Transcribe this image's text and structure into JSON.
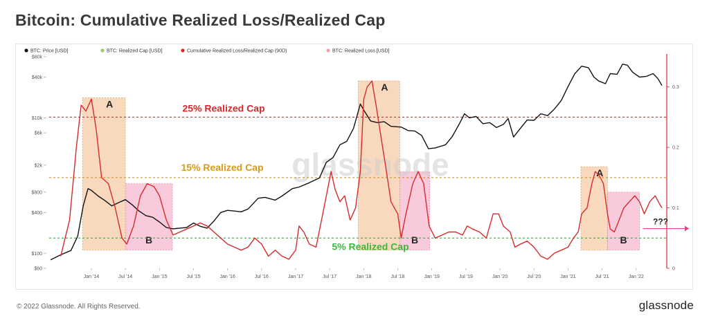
{
  "title": "Bitcoin: Cumulative Realized Loss/Realized Cap",
  "footer": {
    "copyright": "© 2022 Glassnode. All Rights Reserved.",
    "brand": "glassnode"
  },
  "watermark": "glassnode",
  "chart_data": {
    "type": "line",
    "legend": [
      {
        "label": "BTC: Price [USD]",
        "color": "#111111",
        "active": true
      },
      {
        "label": "BTC: Realized Cap [USD]",
        "color": "#8fd16a",
        "active": false
      },
      {
        "label": "Cumulative Realized Loss/Realized Cap (90D)",
        "color": "#d62a2a",
        "active": true
      },
      {
        "label": "BTC: Realized Loss [USD]",
        "color": "#f2a3a8",
        "active": false
      }
    ],
    "x_ticks": [
      "Jan '14",
      "Jul '14",
      "Jan '15",
      "Jul '15",
      "Jan '16",
      "Jul '16",
      "Jan '17",
      "Jul '17",
      "Jan '18",
      "Jul '18",
      "Jan '19",
      "Jul '19",
      "Jan '20",
      "Jul '20",
      "Jan '21",
      "Jul '21",
      "Jan '22"
    ],
    "y_left": {
      "scale": "log",
      "ticks": [
        "$60",
        "$100",
        "$400",
        "$800",
        "$2k",
        "$6k",
        "$10k",
        "$40k",
        "$80k"
      ]
    },
    "y_right": {
      "scale": "linear",
      "range": [
        0,
        0.35
      ],
      "ticks": [
        "0",
        "0.1",
        "0.2",
        "0.3"
      ]
    },
    "levels": [
      {
        "label": "25% Realized Cap",
        "value": 0.25,
        "color": "#d62a2a"
      },
      {
        "label": "15% Realized Cap",
        "value": 0.15,
        "color": "#d99a1a"
      },
      {
        "label": "5% Realized Cap",
        "value": 0.05,
        "color": "#3cb83c"
      }
    ],
    "zones": [
      {
        "label": "A",
        "kind": "A",
        "start": 2013.87,
        "end": 2014.5
      },
      {
        "label": "B",
        "kind": "B",
        "start": 2014.5,
        "end": 2015.19
      },
      {
        "label": "A",
        "kind": "A",
        "start": 2017.92,
        "end": 2018.53
      },
      {
        "label": "B",
        "kind": "B",
        "start": 2018.53,
        "end": 2018.97
      },
      {
        "label": "A",
        "kind": "A",
        "start": 2021.19,
        "end": 2021.58
      },
      {
        "label": "B",
        "kind": "B",
        "start": 2021.58,
        "end": 2022.05
      }
    ],
    "annotation": "???",
    "series": [
      {
        "name": "BTC: Price [USD]",
        "axis": "left",
        "color": "#111111",
        "points": [
          [
            2013.4,
            80
          ],
          [
            2013.55,
            95
          ],
          [
            2013.7,
            110
          ],
          [
            2013.8,
            180
          ],
          [
            2013.88,
            500
          ],
          [
            2013.95,
            900
          ],
          [
            2014.0,
            850
          ],
          [
            2014.1,
            700
          ],
          [
            2014.2,
            600
          ],
          [
            2014.3,
            500
          ],
          [
            2014.4,
            560
          ],
          [
            2014.5,
            620
          ],
          [
            2014.6,
            520
          ],
          [
            2014.7,
            420
          ],
          [
            2014.8,
            360
          ],
          [
            2014.9,
            340
          ],
          [
            2015.0,
            290
          ],
          [
            2015.1,
            240
          ],
          [
            2015.2,
            230
          ],
          [
            2015.3,
            235
          ],
          [
            2015.4,
            240
          ],
          [
            2015.5,
            280
          ],
          [
            2015.6,
            250
          ],
          [
            2015.7,
            235
          ],
          [
            2015.8,
            300
          ],
          [
            2015.9,
            400
          ],
          [
            2016.0,
            430
          ],
          [
            2016.1,
            420
          ],
          [
            2016.2,
            410
          ],
          [
            2016.3,
            450
          ],
          [
            2016.45,
            650
          ],
          [
            2016.55,
            670
          ],
          [
            2016.7,
            610
          ],
          [
            2016.8,
            700
          ],
          [
            2016.95,
            900
          ],
          [
            2017.05,
            950
          ],
          [
            2017.2,
            1100
          ],
          [
            2017.35,
            1300
          ],
          [
            2017.45,
            2200
          ],
          [
            2017.55,
            2600
          ],
          [
            2017.65,
            4000
          ],
          [
            2017.75,
            4500
          ],
          [
            2017.85,
            7000
          ],
          [
            2017.95,
            16000
          ],
          [
            2018.0,
            13000
          ],
          [
            2018.1,
            9000
          ],
          [
            2018.2,
            8500
          ],
          [
            2018.3,
            8800
          ],
          [
            2018.4,
            7500
          ],
          [
            2018.55,
            7300
          ],
          [
            2018.65,
            6500
          ],
          [
            2018.75,
            6400
          ],
          [
            2018.85,
            5500
          ],
          [
            2018.95,
            3500
          ],
          [
            2019.05,
            3600
          ],
          [
            2019.2,
            4000
          ],
          [
            2019.3,
            5300
          ],
          [
            2019.4,
            8000
          ],
          [
            2019.48,
            11500
          ],
          [
            2019.55,
            10000
          ],
          [
            2019.65,
            10500
          ],
          [
            2019.75,
            8200
          ],
          [
            2019.85,
            8500
          ],
          [
            2019.95,
            7200
          ],
          [
            2020.05,
            8000
          ],
          [
            2020.12,
            9800
          ],
          [
            2020.2,
            5200
          ],
          [
            2020.3,
            7000
          ],
          [
            2020.4,
            9300
          ],
          [
            2020.5,
            9200
          ],
          [
            2020.6,
            11500
          ],
          [
            2020.7,
            10800
          ],
          [
            2020.8,
            13500
          ],
          [
            2020.9,
            18000
          ],
          [
            2021.0,
            29000
          ],
          [
            2021.1,
            45000
          ],
          [
            2021.2,
            58000
          ],
          [
            2021.3,
            55000
          ],
          [
            2021.38,
            40000
          ],
          [
            2021.45,
            35000
          ],
          [
            2021.55,
            32000
          ],
          [
            2021.62,
            45000
          ],
          [
            2021.72,
            44000
          ],
          [
            2021.8,
            62000
          ],
          [
            2021.87,
            60000
          ],
          [
            2021.95,
            47000
          ],
          [
            2022.05,
            40000
          ],
          [
            2022.15,
            41000
          ],
          [
            2022.25,
            45000
          ],
          [
            2022.32,
            38000
          ],
          [
            2022.38,
            30000
          ]
        ]
      },
      {
        "name": "Cumulative Realized Loss/Realized Cap (90D)",
        "axis": "right",
        "color": "#d62a2a",
        "points": [
          [
            2013.55,
            0.02
          ],
          [
            2013.68,
            0.08
          ],
          [
            2013.78,
            0.2
          ],
          [
            2013.85,
            0.27
          ],
          [
            2013.92,
            0.26
          ],
          [
            2014.0,
            0.28
          ],
          [
            2014.07,
            0.23
          ],
          [
            2014.15,
            0.15
          ],
          [
            2014.25,
            0.14
          ],
          [
            2014.35,
            0.1
          ],
          [
            2014.45,
            0.05
          ],
          [
            2014.52,
            0.04
          ],
          [
            2014.62,
            0.07
          ],
          [
            2014.72,
            0.12
          ],
          [
            2014.82,
            0.14
          ],
          [
            2014.92,
            0.135
          ],
          [
            2015.0,
            0.12
          ],
          [
            2015.1,
            0.08
          ],
          [
            2015.2,
            0.055
          ],
          [
            2015.3,
            0.06
          ],
          [
            2015.4,
            0.065
          ],
          [
            2015.5,
            0.07
          ],
          [
            2015.6,
            0.075
          ],
          [
            2015.7,
            0.07
          ],
          [
            2015.8,
            0.06
          ],
          [
            2015.9,
            0.05
          ],
          [
            2016.0,
            0.04
          ],
          [
            2016.1,
            0.035
          ],
          [
            2016.2,
            0.03
          ],
          [
            2016.3,
            0.035
          ],
          [
            2016.4,
            0.05
          ],
          [
            2016.5,
            0.04
          ],
          [
            2016.6,
            0.02
          ],
          [
            2016.7,
            0.03
          ],
          [
            2016.8,
            0.02
          ],
          [
            2016.9,
            0.015
          ],
          [
            2017.0,
            0.03
          ],
          [
            2017.05,
            0.07
          ],
          [
            2017.12,
            0.06
          ],
          [
            2017.2,
            0.04
          ],
          [
            2017.3,
            0.035
          ],
          [
            2017.38,
            0.08
          ],
          [
            2017.45,
            0.12
          ],
          [
            2017.52,
            0.16
          ],
          [
            2017.58,
            0.13
          ],
          [
            2017.65,
            0.11
          ],
          [
            2017.72,
            0.12
          ],
          [
            2017.8,
            0.08
          ],
          [
            2017.88,
            0.1
          ],
          [
            2017.95,
            0.16
          ],
          [
            2018.0,
            0.28
          ],
          [
            2018.05,
            0.3
          ],
          [
            2018.12,
            0.31
          ],
          [
            2018.18,
            0.27
          ],
          [
            2018.25,
            0.22
          ],
          [
            2018.32,
            0.17
          ],
          [
            2018.4,
            0.11
          ],
          [
            2018.5,
            0.09
          ],
          [
            2018.55,
            0.05
          ],
          [
            2018.62,
            0.09
          ],
          [
            2018.72,
            0.14
          ],
          [
            2018.8,
            0.16
          ],
          [
            2018.88,
            0.14
          ],
          [
            2018.96,
            0.07
          ],
          [
            2019.05,
            0.05
          ],
          [
            2019.15,
            0.055
          ],
          [
            2019.25,
            0.06
          ],
          [
            2019.35,
            0.06
          ],
          [
            2019.45,
            0.055
          ],
          [
            2019.52,
            0.07
          ],
          [
            2019.6,
            0.065
          ],
          [
            2019.7,
            0.06
          ],
          [
            2019.8,
            0.05
          ],
          [
            2019.9,
            0.09
          ],
          [
            2019.98,
            0.09
          ],
          [
            2020.05,
            0.07
          ],
          [
            2020.15,
            0.06
          ],
          [
            2020.22,
            0.035
          ],
          [
            2020.3,
            0.04
          ],
          [
            2020.4,
            0.045
          ],
          [
            2020.5,
            0.035
          ],
          [
            2020.6,
            0.02
          ],
          [
            2020.7,
            0.015
          ],
          [
            2020.8,
            0.025
          ],
          [
            2020.9,
            0.03
          ],
          [
            2021.0,
            0.035
          ],
          [
            2021.08,
            0.05
          ],
          [
            2021.15,
            0.06
          ],
          [
            2021.2,
            0.09
          ],
          [
            2021.28,
            0.1
          ],
          [
            2021.35,
            0.14
          ],
          [
            2021.4,
            0.16
          ],
          [
            2021.45,
            0.155
          ],
          [
            2021.52,
            0.14
          ],
          [
            2021.58,
            0.09
          ],
          [
            2021.62,
            0.065
          ],
          [
            2021.68,
            0.06
          ],
          [
            2021.75,
            0.08
          ],
          [
            2021.82,
            0.1
          ],
          [
            2021.9,
            0.11
          ],
          [
            2021.98,
            0.12
          ],
          [
            2022.05,
            0.11
          ],
          [
            2022.12,
            0.09
          ],
          [
            2022.2,
            0.11
          ],
          [
            2022.28,
            0.12
          ],
          [
            2022.35,
            0.105
          ],
          [
            2022.38,
            0.1
          ]
        ]
      }
    ]
  }
}
